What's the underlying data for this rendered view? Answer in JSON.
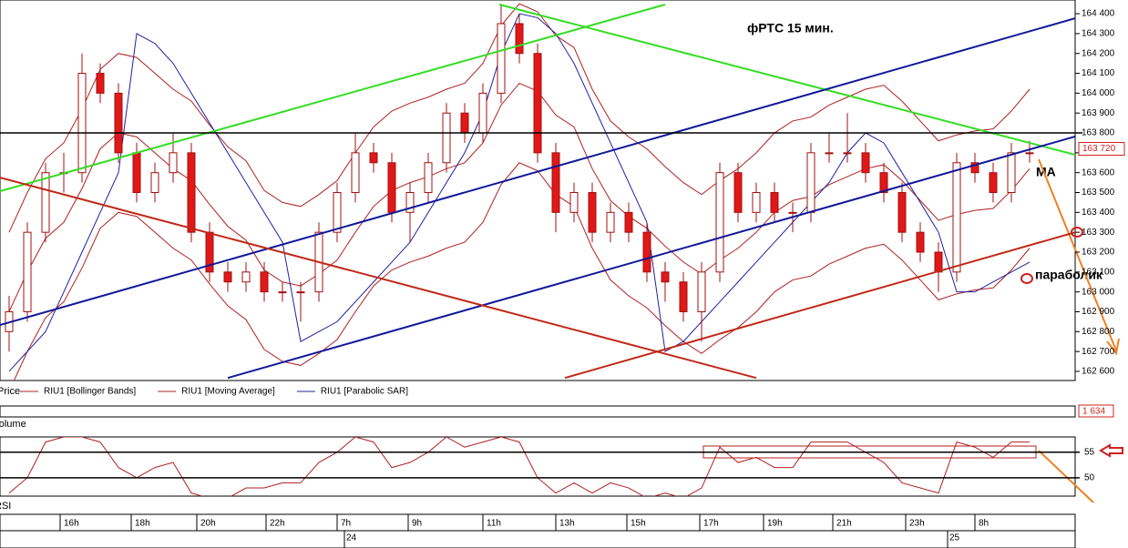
{
  "chart_data": {
    "type": "candlestick",
    "title": "фРТС    15 мин.",
    "annotations": [
      "МА",
      "параболик"
    ],
    "panel_labels": [
      "Price",
      "Volume",
      "RSI"
    ],
    "ylim": [
      162554,
      164469
    ],
    "yticks": [
      {
        "value": 162600,
        "label": "162 600"
      },
      {
        "value": 162700,
        "label": "162 700"
      },
      {
        "value": 162800,
        "label": "162 800"
      },
      {
        "value": 162900,
        "label": "162 900"
      },
      {
        "value": 163000,
        "label": "163 000"
      },
      {
        "value": 163100,
        "label": "163 100"
      },
      {
        "value": 163200,
        "label": "163 200"
      },
      {
        "value": 163300,
        "label": "163 300"
      },
      {
        "value": 163400,
        "label": "163 400"
      },
      {
        "value": 163500,
        "label": "163 500"
      },
      {
        "value": 163600,
        "label": "163 600"
      },
      {
        "value": 163700,
        "label": "163 700"
      },
      {
        "value": 163800,
        "label": "163 800"
      },
      {
        "value": 163900,
        "label": "163 900"
      },
      {
        "value": 164000,
        "label": "164 000"
      },
      {
        "value": 164100,
        "label": "164 100"
      },
      {
        "value": 164200,
        "label": "164 200"
      },
      {
        "value": 164300,
        "label": "164 300"
      },
      {
        "value": 164400,
        "label": "164 400"
      }
    ],
    "xlim": [
      -0.5,
      58.5
    ],
    "xticks": [
      {
        "value": 3.6,
        "label": "16h"
      },
      {
        "value": 7.5,
        "label": "18h"
      },
      {
        "value": 11.1,
        "label": "20h"
      },
      {
        "value": 14.9,
        "label": "22h"
      },
      {
        "value": 18.8,
        "label": "7h"
      },
      {
        "value": 22.7,
        "label": "9h"
      },
      {
        "value": 26.8,
        "label": "11h"
      },
      {
        "value": 30.8,
        "label": "13h"
      },
      {
        "value": 34.7,
        "label": "15h"
      },
      {
        "value": 38.7,
        "label": "17h"
      },
      {
        "value": 42.2,
        "label": "19h"
      },
      {
        "value": 46,
        "label": "21h"
      },
      {
        "value": 50,
        "label": "23h"
      },
      {
        "value": 53.8,
        "label": "8h"
      }
    ],
    "date_ticks": [
      {
        "value": 18.7,
        "label": "24"
      },
      {
        "value": 51.8,
        "label": "25"
      }
    ],
    "last_price": {
      "value": 163720,
      "label": "163 720"
    },
    "volume_last": {
      "value": 1634,
      "label": "1 634"
    },
    "levels": [
      163800
    ],
    "candles": [
      [
        162800,
        162980,
        162700,
        162900
      ],
      [
        162900,
        163350,
        162850,
        163300
      ],
      [
        163300,
        163650,
        163250,
        163600
      ],
      [
        163600,
        163700,
        163500,
        163600
      ],
      [
        163600,
        164200,
        163550,
        164100
      ],
      [
        164100,
        164150,
        163950,
        164000
      ],
      [
        164000,
        164050,
        163650,
        163700
      ],
      [
        163700,
        163750,
        163450,
        163500
      ],
      [
        163500,
        163650,
        163450,
        163600
      ],
      [
        163600,
        163800,
        163550,
        163700
      ],
      [
        163700,
        163750,
        163250,
        163300
      ],
      [
        163300,
        163350,
        163050,
        163100
      ],
      [
        163100,
        163150,
        163000,
        163050
      ],
      [
        163050,
        163150,
        163000,
        163100
      ],
      [
        163100,
        163150,
        162950,
        163000
      ],
      [
        163000,
        163050,
        162950,
        163000
      ],
      [
        163000,
        163050,
        162850,
        163000
      ],
      [
        163000,
        163350,
        162950,
        163300
      ],
      [
        163300,
        163550,
        163250,
        163500
      ],
      [
        163500,
        163800,
        163450,
        163700
      ],
      [
        163700,
        163750,
        163600,
        163650
      ],
      [
        163650,
        163700,
        163350,
        163400
      ],
      [
        163400,
        163550,
        163250,
        163500
      ],
      [
        163500,
        163700,
        163450,
        163650
      ],
      [
        163650,
        163950,
        163600,
        163900
      ],
      [
        163900,
        163950,
        163750,
        163800
      ],
      [
        163800,
        164050,
        163750,
        164000
      ],
      [
        164000,
        164450,
        163950,
        164350
      ],
      [
        164350,
        164400,
        164150,
        164200
      ],
      [
        164200,
        164250,
        163650,
        163700
      ],
      [
        163700,
        163750,
        163300,
        163400
      ],
      [
        163400,
        163550,
        163350,
        163500
      ],
      [
        163500,
        163550,
        163250,
        163300
      ],
      [
        163300,
        163450,
        163250,
        163400
      ],
      [
        163400,
        163450,
        163250,
        163300
      ],
      [
        163300,
        163350,
        163050,
        163100
      ],
      [
        163100,
        163150,
        162950,
        163050
      ],
      [
        163050,
        163100,
        162850,
        162900
      ],
      [
        162900,
        163150,
        162750,
        163100
      ],
      [
        163100,
        163650,
        163050,
        163600
      ],
      [
        163600,
        163650,
        163350,
        163400
      ],
      [
        163400,
        163550,
        163350,
        163500
      ],
      [
        163500,
        163550,
        163350,
        163400
      ],
      [
        163400,
        163450,
        163300,
        163400
      ],
      [
        163400,
        163750,
        163350,
        163700
      ],
      [
        163700,
        163800,
        163650,
        163700
      ],
      [
        163700,
        163900,
        163650,
        163700
      ],
      [
        163700,
        163750,
        163550,
        163600
      ],
      [
        163600,
        163650,
        163450,
        163500
      ],
      [
        163500,
        163550,
        163250,
        163300
      ],
      [
        163300,
        163350,
        163150,
        163200
      ],
      [
        163200,
        163250,
        163000,
        163100
      ],
      [
        163100,
        163700,
        163050,
        163650
      ],
      [
        163650,
        163700,
        163550,
        163600
      ],
      [
        163600,
        163650,
        163450,
        163500
      ],
      [
        163500,
        163750,
        163450,
        163700
      ],
      [
        163700,
        163760,
        163650,
        163700
      ]
    ],
    "series": [
      {
        "name": "RIU1 [Bollinger Bands]",
        "color": "#b02020",
        "upper": [
          163300,
          163500,
          163670,
          163750,
          163920,
          164120,
          164200,
          164180,
          164100,
          164020,
          163960,
          163840,
          163730,
          163660,
          163510,
          163450,
          163430,
          163490,
          163560,
          163700,
          163830,
          163910,
          163950,
          163980,
          164020,
          164050,
          164150,
          164340,
          164450,
          164410,
          164290,
          164230,
          164020,
          163860,
          163780,
          163720,
          163630,
          163550,
          163490,
          163560,
          163620,
          163700,
          163800,
          163860,
          163880,
          163940,
          163980,
          164020,
          164040,
          163960,
          163860,
          163760,
          163790,
          163810,
          163820,
          163910,
          164020
        ],
        "lower": [
          162500,
          162700,
          162870,
          162950,
          163120,
          163320,
          163400,
          163380,
          163300,
          163220,
          163160,
          163040,
          162930,
          162860,
          162710,
          162650,
          162630,
          162690,
          162760,
          162900,
          163030,
          163110,
          163150,
          163180,
          163220,
          163250,
          163350,
          163540,
          163650,
          163610,
          163490,
          163430,
          163220,
          163060,
          162980,
          162920,
          162830,
          162750,
          162690,
          162760,
          162820,
          162900,
          163000,
          163060,
          163080,
          163140,
          163180,
          163220,
          163240,
          163160,
          163060,
          162960,
          162990,
          163010,
          163020,
          163110,
          163220
        ]
      },
      {
        "name": "RIU1 [Moving Average]",
        "color": "#b02020",
        "values": [
          162900,
          163100,
          163270,
          163350,
          163520,
          163720,
          163800,
          163780,
          163700,
          163620,
          163560,
          163440,
          163330,
          163260,
          163110,
          163050,
          163030,
          163090,
          163160,
          163300,
          163430,
          163510,
          163550,
          163580,
          163620,
          163650,
          163750,
          163940,
          164050,
          164010,
          163890,
          163830,
          163620,
          163460,
          163380,
          163320,
          163230,
          163150,
          163090,
          163160,
          163220,
          163300,
          163400,
          163460,
          163480,
          163540,
          163580,
          163620,
          163640,
          163560,
          163460,
          163360,
          163390,
          163410,
          163420,
          163510,
          163620
        ]
      },
      {
        "name": "RIU1 [Parabolic SAR]",
        "color": "#2020a0",
        "values": [
          162600,
          162700,
          162800,
          163000,
          163200,
          163400,
          163600,
          164300,
          164250,
          164150,
          164000,
          163850,
          163700,
          163550,
          163400,
          163250,
          162750,
          162800,
          162850,
          162950,
          163050,
          163150,
          163250,
          163400,
          163550,
          163700,
          163900,
          164200,
          164400,
          164380,
          164300,
          164150,
          163950,
          163750,
          163550,
          163350,
          162700,
          162750,
          162850,
          162950,
          163050,
          163150,
          163250,
          163350,
          163450,
          163550,
          163700,
          163800,
          163750,
          163600,
          163450,
          163300,
          163000,
          163000,
          163050,
          163100,
          163150
        ]
      }
    ],
    "trendlines": [
      {
        "color": "#33dd22",
        "x": [
          -0.5,
          36
        ],
        "y": [
          163507,
          164446
        ]
      },
      {
        "color": "#33dd22",
        "x": [
          26.9,
          58.5
        ],
        "y": [
          164446,
          163690
        ]
      },
      {
        "color": "#10189a",
        "x": [
          -0.5,
          58.5
        ],
        "y": [
          162833,
          164377
        ]
      },
      {
        "color": "#10189a",
        "x": [
          12,
          58.5
        ],
        "y": [
          162567,
          163782
        ]
      },
      {
        "color": "#c02818",
        "x": [
          -0.5,
          41
        ],
        "y": [
          163575,
          162567
        ]
      },
      {
        "color": "#c02818",
        "x": [
          30.5,
          58.5
        ],
        "y": [
          162567,
          163300
        ]
      }
    ],
    "rsi": {
      "ylim": [
        46.4,
        58
      ],
      "yticks": [
        55,
        50
      ],
      "color": "#b02020",
      "values": [
        47,
        50,
        57,
        58,
        58,
        57,
        52,
        50,
        52,
        53,
        47,
        46,
        46,
        48,
        48,
        49,
        49,
        53,
        55,
        58,
        57,
        52,
        53,
        55,
        58,
        56,
        57,
        58,
        57,
        50,
        47,
        49,
        47,
        49,
        48,
        46,
        47,
        46,
        48,
        56,
        53,
        54,
        52,
        52,
        57,
        57,
        57,
        55,
        53,
        49,
        48,
        47,
        57,
        56,
        54,
        57,
        57
      ]
    }
  }
}
